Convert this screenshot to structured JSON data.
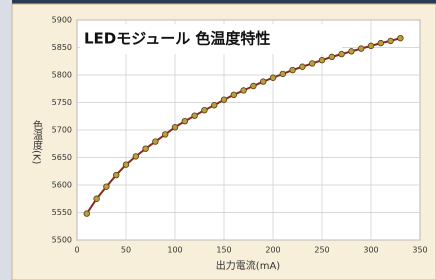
{
  "chart_data": {
    "type": "line",
    "title": "LEDモジュール 色温度特性",
    "x_label": "出力電流(mA)",
    "y_label": "色温度(K)",
    "x": [
      10,
      20,
      30,
      40,
      50,
      60,
      70,
      80,
      90,
      100,
      110,
      120,
      130,
      140,
      150,
      160,
      170,
      180,
      190,
      200,
      210,
      220,
      230,
      240,
      250,
      260,
      270,
      280,
      290,
      300,
      310,
      320,
      330
    ],
    "series": [
      {
        "color": "#8b2a1a",
        "marker_color": "#b8a040",
        "values": [
          5548,
          5575,
          5597,
          5618,
          5637,
          5652,
          5666,
          5679,
          5692,
          5705,
          5716,
          5726,
          5736,
          5745,
          5755,
          5764,
          5772,
          5780,
          5788,
          5795,
          5802,
          5809,
          5815,
          5821,
          5827,
          5833,
          5838,
          5843,
          5848,
          5853,
          5858,
          5862,
          5867
        ]
      }
    ],
    "xlim": [
      0,
      350
    ],
    "xticks": [
      0,
      50,
      100,
      150,
      200,
      250,
      300,
      350
    ],
    "ylim": [
      5500,
      5900
    ],
    "yticks": [
      5500,
      5550,
      5600,
      5650,
      5700,
      5750,
      5800,
      5850,
      5900
    ],
    "grid": true
  }
}
